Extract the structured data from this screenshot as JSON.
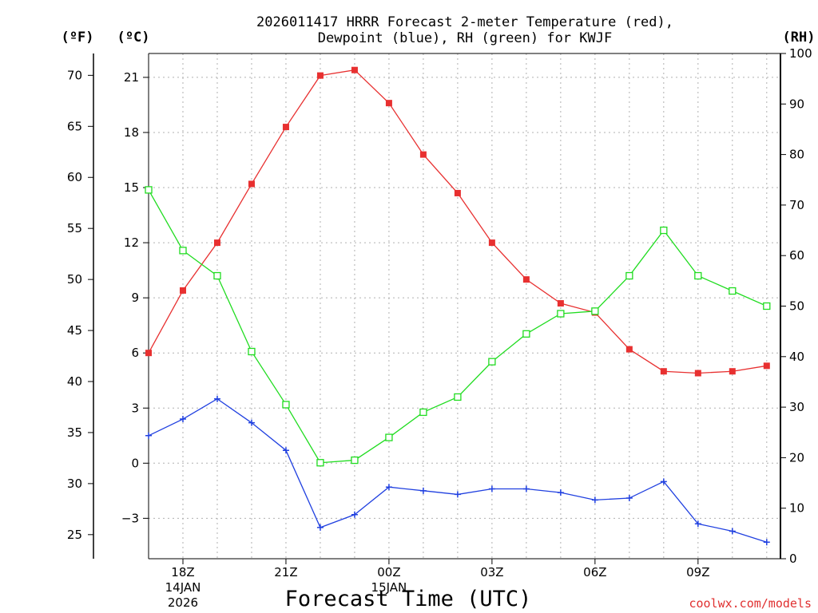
{
  "chart_data": {
    "type": "line",
    "title_line1": "2026011417 HRRR Forecast 2-meter Temperature (red),",
    "title_line2": "Dewpoint (blue), RH (green) for KWJF",
    "xlabel": "Forecast Time (UTC)",
    "credit": "coolwx.com/models",
    "unit_left_f": "(ºF)",
    "unit_left_c": "(ºC)",
    "unit_right": "(RH)",
    "x_hours": [
      17,
      18,
      19,
      20,
      21,
      22,
      23,
      24,
      25,
      26,
      27,
      28,
      29,
      30,
      31,
      32,
      33,
      34,
      35
    ],
    "xlim": [
      17,
      35.4
    ],
    "x_ticks": [
      {
        "hour": 18,
        "label": "18Z",
        "sub1": "14JAN",
        "sub2": "2026"
      },
      {
        "hour": 21,
        "label": "21Z",
        "sub1": "",
        "sub2": ""
      },
      {
        "hour": 24,
        "label": "00Z",
        "sub1": "15JAN",
        "sub2": ""
      },
      {
        "hour": 27,
        "label": "03Z",
        "sub1": "",
        "sub2": ""
      },
      {
        "hour": 30,
        "label": "06Z",
        "sub1": "",
        "sub2": ""
      },
      {
        "hour": 33,
        "label": "09Z",
        "sub1": "",
        "sub2": ""
      }
    ],
    "celsius_axis": {
      "ylim": [
        -5.2,
        22.3
      ],
      "ticks": [
        21,
        18,
        15,
        12,
        9,
        6,
        3,
        0,
        -3
      ],
      "tick_labels": [
        "21",
        "18",
        "15",
        "12",
        "9",
        "6",
        "3",
        "0",
        "−3"
      ]
    },
    "fahrenheit_axis": {
      "ticks": [
        70,
        65,
        60,
        55,
        50,
        45,
        40,
        35,
        30,
        25
      ],
      "tick_labels": [
        "70",
        "65",
        "60",
        "55",
        "50",
        "45",
        "40",
        "35",
        "30",
        "25"
      ]
    },
    "rh_axis": {
      "ylim": [
        0,
        100
      ],
      "ticks": [
        0,
        10,
        20,
        30,
        40,
        50,
        60,
        70,
        80,
        90,
        100
      ],
      "tick_labels": [
        "0",
        "10",
        "20",
        "30",
        "40",
        "50",
        "60",
        "70",
        "80",
        "90",
        "100"
      ]
    },
    "series": [
      {
        "name": "Temperature",
        "unit": "C",
        "color": "#e83030",
        "marker": "filled-square",
        "values": [
          6.0,
          9.4,
          12.0,
          15.2,
          18.3,
          21.1,
          21.4,
          19.6,
          16.8,
          14.7,
          12.0,
          10.0,
          8.7,
          8.2,
          6.2,
          5.0,
          4.9,
          5.0,
          5.3
        ]
      },
      {
        "name": "Dewpoint",
        "unit": "C",
        "color": "#2040e0",
        "marker": "plus",
        "values": [
          1.5,
          2.4,
          3.5,
          2.2,
          0.7,
          -3.5,
          -2.8,
          -1.3,
          -1.5,
          -1.7,
          -1.4,
          -1.4,
          -1.6,
          -2.0,
          -1.9,
          -1.0,
          -3.3,
          -3.7,
          -4.3
        ]
      },
      {
        "name": "RH",
        "unit": "%",
        "color": "#20dc20",
        "marker": "open-square",
        "values": [
          73,
          61,
          56,
          41,
          30.5,
          19,
          19.5,
          24,
          29,
          32,
          39,
          44.5,
          48.5,
          49,
          56,
          65,
          56,
          53,
          50
        ]
      }
    ]
  }
}
